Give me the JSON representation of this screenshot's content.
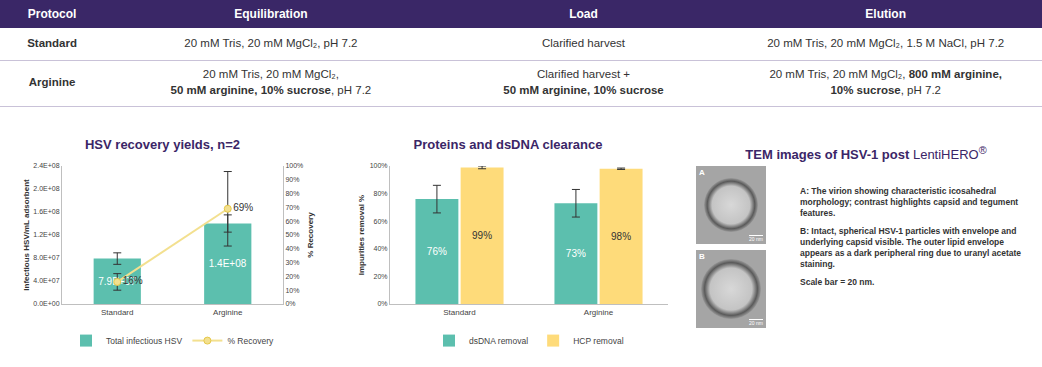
{
  "table": {
    "header": [
      "Protocol",
      "Equilibration",
      "Load",
      "Elution"
    ],
    "rows": [
      [
        [
          {
            "text": "Standard"
          }
        ],
        [
          {
            "text": "20 mM Tris, 20 mM MgCl₂, pH 7.2"
          }
        ],
        [
          {
            "text": "Clarified harvest"
          }
        ],
        [
          {
            "text": "20 mM Tris, 20 mM MgCl₂, 1.5 M NaCl, pH 7.2"
          }
        ]
      ],
      [
        [
          {
            "text": "Arginine"
          }
        ],
        [
          {
            "text": "20 mM Tris, 20 mM MgCl₂,\n"
          },
          {
            "text": "50 mM arginine, 10% sucrose",
            "bold": true
          },
          {
            "text": ", pH 7.2"
          }
        ],
        [
          {
            "text": "Clarified harvest +\n"
          },
          {
            "text": "50 mM arginine, 10% sucrose",
            "bold": true
          }
        ],
        [
          {
            "text": "20 mM Tris, 20 mM MgCl₂, "
          },
          {
            "text": "800 mM arginine,\n10% sucrose",
            "bold": true
          },
          {
            "text": ", pH 7.2"
          }
        ]
      ]
    ]
  },
  "chart_data": [
    {
      "type": "bar",
      "title": "HSV recovery yields, n=2",
      "categories": [
        "Standard",
        "Arginine"
      ],
      "series": [
        {
          "name": "Total infectious HSV",
          "type": "bar",
          "color": "#5cbfae",
          "values": [
            79000000,
            140000000
          ],
          "errors": [
            10000000,
            15000000
          ],
          "value_labels": [
            "7.9E+07",
            "1.4E+08"
          ]
        },
        {
          "name": "% Recovery",
          "type": "line",
          "axis": "y2",
          "color": "#f3e08f",
          "marker": "circle",
          "line_style": "solid",
          "values": [
            16,
            69
          ],
          "errors": [
            6,
            27
          ],
          "value_labels": [
            "16%",
            "69%"
          ]
        }
      ],
      "ylabel": "Infectious HSV/mL adsorbent",
      "y2label": "% Recovery",
      "ylim": [
        0,
        240000000
      ],
      "yticks": [
        {
          "value": 0,
          "label": "0.0E+00"
        },
        {
          "value": 40000000,
          "label": "4.0E+07"
        },
        {
          "value": 80000000,
          "label": "8.0E+07"
        },
        {
          "value": 120000000,
          "label": "1.2E+08"
        },
        {
          "value": 160000000,
          "label": "1.6E+08"
        },
        {
          "value": 200000000,
          "label": "2.0E+08"
        },
        {
          "value": 240000000,
          "label": "2.4E+08"
        }
      ],
      "y2lim": [
        0,
        100
      ],
      "y2ticks": [
        {
          "value": 0,
          "label": "0%"
        },
        {
          "value": 10,
          "label": "10%"
        },
        {
          "value": 20,
          "label": "20%"
        },
        {
          "value": 30,
          "label": "30%"
        },
        {
          "value": 40,
          "label": "40%"
        },
        {
          "value": 50,
          "label": "50%"
        },
        {
          "value": 60,
          "label": "60%"
        },
        {
          "value": 70,
          "label": "70%"
        },
        {
          "value": 80,
          "label": "80%"
        },
        {
          "value": 90,
          "label": "90%"
        },
        {
          "value": 100,
          "label": "100%"
        }
      ],
      "data_labels": true,
      "legend": "bottom",
      "grid": false
    },
    {
      "type": "bar",
      "title": "Proteins and dsDNA clearance",
      "categories": [
        "Standard",
        "Arginine"
      ],
      "series": [
        {
          "name": "dsDNA removal",
          "color": "#5cbfae",
          "values": [
            76,
            73
          ],
          "errors": [
            10,
            10
          ],
          "value_labels": [
            "76%",
            "73%"
          ]
        },
        {
          "name": "HCP removal",
          "color": "#fedb7a",
          "values": [
            99,
            98
          ],
          "errors": [
            1,
            0.5
          ],
          "value_labels": [
            "99%",
            "98%"
          ]
        }
      ],
      "ylabel": "Impurities removal %",
      "ylim": [
        0,
        100
      ],
      "yticks": [
        {
          "value": 0,
          "label": "0%"
        },
        {
          "value": 20,
          "label": "20%"
        },
        {
          "value": 40,
          "label": "40%"
        },
        {
          "value": 60,
          "label": "60%"
        },
        {
          "value": 80,
          "label": "80%"
        },
        {
          "value": 100,
          "label": "100%"
        }
      ],
      "data_labels": true,
      "legend": "bottom",
      "grid": false
    }
  ],
  "tem": {
    "title": "TEM images of HSV-1 post ",
    "brand": "LentiHERO",
    "brand_mark": "®",
    "images": [
      {
        "label": "A",
        "scale_label": "20 nm"
      },
      {
        "label": "B",
        "scale_label": "20 nm"
      }
    ],
    "captions": [
      {
        "label": "A:",
        "text": "The virion showing characteristic icosahedral morphology; contrast highlights capsid and tegument features."
      },
      {
        "label": "B:",
        "text": "Intact, spherical HSV-1 particles with envelope and underlying capsid visible. The outer lipid envelope appears as a dark peripheral ring due to uranyl acetate staining."
      }
    ],
    "note": "Scale bar = 20 nm."
  }
}
